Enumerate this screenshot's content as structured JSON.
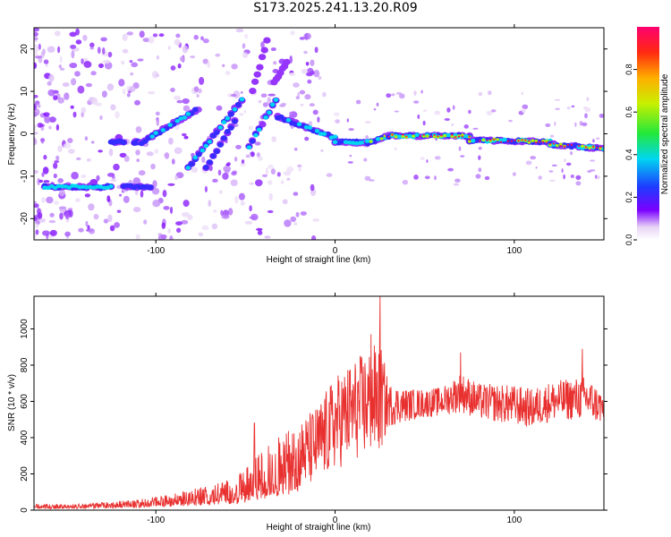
{
  "title": "S173.2025.241.13.20.R09",
  "chart_data": [
    {
      "type": "heatmap",
      "xlabel": "Height of straight line (km)",
      "ylabel": "Frequency (Hz)",
      "xlim": [
        -168,
        150
      ],
      "ylim": [
        -25,
        25
      ],
      "xticks": [
        -100,
        0,
        100
      ],
      "xtick_labels": [
        "-100",
        "0",
        "100"
      ],
      "yticks": [
        -20,
        -10,
        0,
        10,
        20
      ],
      "ytick_labels": [
        "-20",
        "-10",
        "0",
        "10",
        "20"
      ],
      "colorbar": {
        "label": "Normalized spectral amplitude",
        "range": [
          0,
          1
        ],
        "ticks": [
          0.0,
          0.2,
          0.4,
          0.6,
          0.8
        ],
        "tick_labels": [
          "0.0",
          "0.2",
          "0.4",
          "0.6",
          "0.8"
        ]
      },
      "segments": [
        {
          "x0": -162,
          "x1": -125,
          "y": -12.5,
          "amp": 0.35
        },
        {
          "x0": -118,
          "x1": -103,
          "y": -12.5,
          "amp": 0.3
        },
        {
          "x0": -125,
          "x1": -118,
          "y": -2,
          "amp": 0.25
        },
        {
          "x0": -112,
          "x1": -108,
          "y": -2,
          "amp": 0.25
        },
        {
          "x0": -108,
          "x1": -78,
          "y0": -2,
          "y1": 5.5,
          "amp": 0.35
        },
        {
          "x0": -82,
          "x1": -52,
          "y0": -8,
          "y1": 8,
          "amp": 0.4
        },
        {
          "x0": -72,
          "x1": -56,
          "y0": -8,
          "y1": 3,
          "amp": 0.3
        },
        {
          "x0": -48,
          "x1": -33,
          "y0": -3,
          "y1": 8,
          "amp": 0.4
        },
        {
          "x0": -46,
          "x1": -38,
          "y0": 10,
          "y1": 22,
          "amp": 0.15
        },
        {
          "x0": -34,
          "x1": -27,
          "y0": 12,
          "y1": 17,
          "amp": 0.12
        },
        {
          "x0": -32,
          "x1": 0,
          "y0": 4,
          "y1": -1,
          "amp": 0.55
        },
        {
          "x0": 0,
          "x1": 18,
          "y0": -2,
          "y1": -2,
          "amp": 0.5
        },
        {
          "x0": 18,
          "x1": 30,
          "y0": -2,
          "y1": -0.5,
          "amp": 0.6
        },
        {
          "x0": 30,
          "x1": 75,
          "y0": -0.5,
          "y1": -0.5,
          "amp": 0.95
        },
        {
          "x0": 75,
          "x1": 120,
          "y0": -1.5,
          "y1": -1.8,
          "amp": 0.9
        },
        {
          "x0": 120,
          "x1": 150,
          "y0": -2.5,
          "y1": -3.5,
          "amp": 0.95
        }
      ]
    },
    {
      "type": "line",
      "xlabel": "Height of straight line (km)",
      "ylabel": "SNR (10 * v/v)",
      "xlim": [
        -168,
        150
      ],
      "ylim": [
        0,
        1180
      ],
      "xticks": [
        -100,
        0,
        100
      ],
      "xtick_labels": [
        "-100",
        "0",
        "100"
      ],
      "yticks": [
        0,
        200,
        400,
        600,
        800,
        1000
      ],
      "ytick_labels": [
        "0",
        "200",
        "400",
        "600",
        "800",
        "1000"
      ],
      "series": [
        {
          "name": "SNR",
          "color": "#e8302f",
          "trend_x": [
            -168,
            -140,
            -110,
            -90,
            -70,
            -55,
            -48,
            -40,
            -30,
            -20,
            -10,
            0,
            10,
            20,
            25,
            30,
            40,
            50,
            60,
            70,
            80,
            100,
            110,
            120,
            140,
            150
          ],
          "trend_y": [
            25,
            25,
            40,
            60,
            90,
            110,
            140,
            200,
            260,
            300,
            360,
            480,
            550,
            600,
            620,
            580,
            580,
            590,
            600,
            650,
            600,
            580,
            560,
            600,
            620,
            560
          ],
          "noise_y": [
            10,
            10,
            20,
            30,
            50,
            70,
            110,
            140,
            170,
            190,
            220,
            260,
            280,
            300,
            320,
            120,
            90,
            80,
            80,
            110,
            100,
            110,
            110,
            110,
            120,
            90
          ],
          "peaks": [
            {
              "x": 25,
              "y": 1180
            },
            {
              "x": 20,
              "y": 970
            },
            {
              "x": -45,
              "y": 480
            },
            {
              "x": 70,
              "y": 870
            },
            {
              "x": 138,
              "y": 890
            }
          ]
        }
      ]
    }
  ]
}
